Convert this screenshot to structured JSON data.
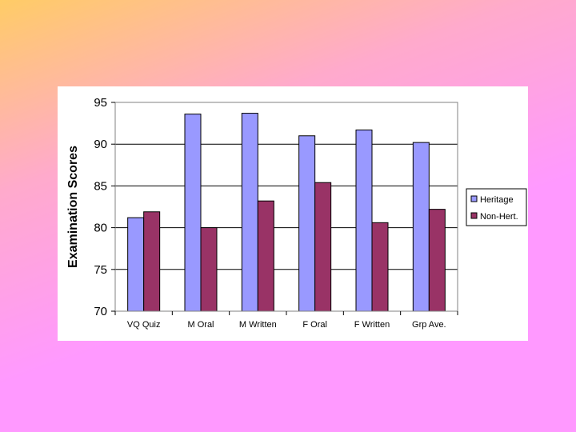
{
  "colors": {
    "heritage": "#9999FF",
    "non_heritage": "#993366",
    "plot_border": "#808080",
    "gridline": "#000000"
  },
  "chart_data": {
    "type": "bar",
    "title": "",
    "xlabel": "",
    "ylabel": "Examination Scores",
    "ylim": [
      70,
      95
    ],
    "yticks": [
      70,
      75,
      80,
      85,
      90,
      95
    ],
    "grid": true,
    "legend_position": "right",
    "categories": [
      "VQ Quiz",
      "M Oral",
      "M Written",
      "F Oral",
      "F Written",
      "Grp Ave."
    ],
    "series": [
      {
        "name": "Heritage",
        "values": [
          81.2,
          93.6,
          93.7,
          91.0,
          91.7,
          90.2
        ]
      },
      {
        "name": "Non-Hert.",
        "values": [
          81.9,
          80.0,
          83.2,
          85.4,
          80.6,
          82.2
        ]
      }
    ]
  }
}
